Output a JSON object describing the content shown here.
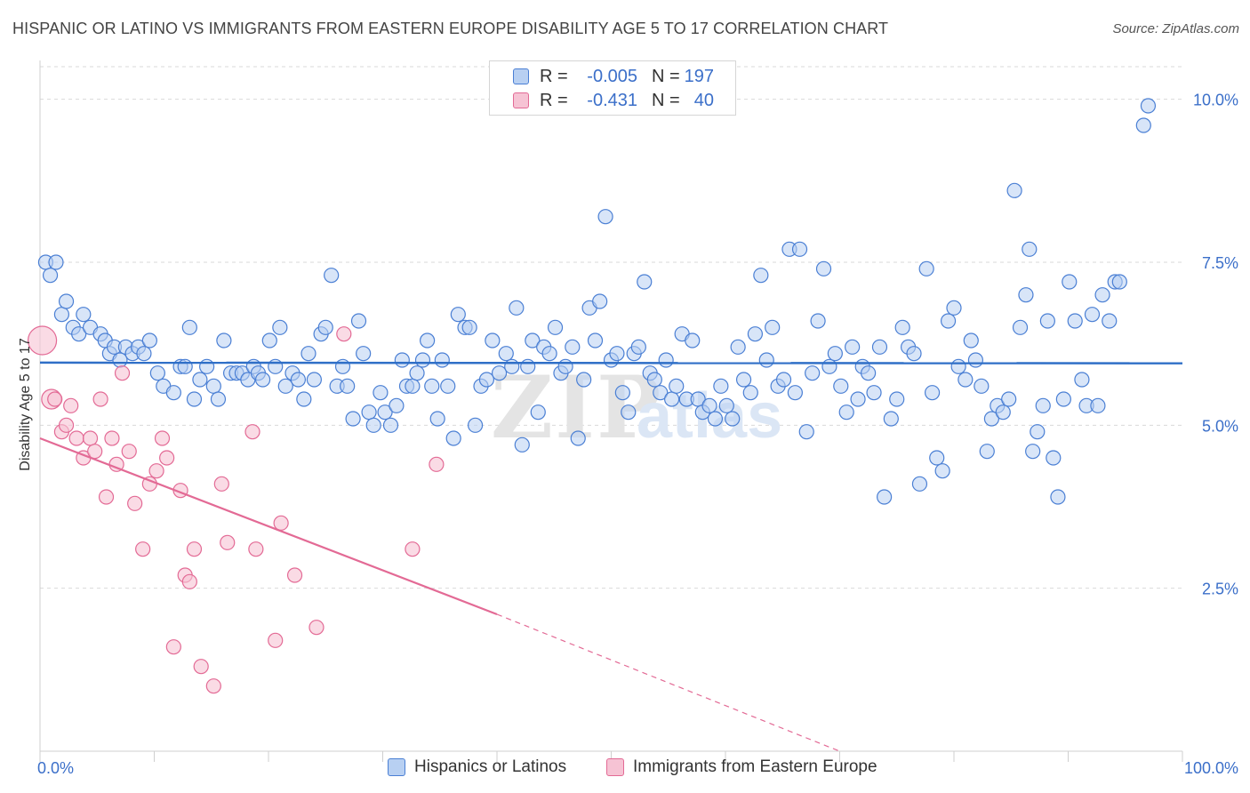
{
  "title": "HISPANIC OR LATINO VS IMMIGRANTS FROM EASTERN EUROPE DISABILITY AGE 5 TO 17 CORRELATION CHART",
  "source": "Source: ZipAtlas.com",
  "watermark": {
    "zip": "ZIP",
    "atlas": "atlas"
  },
  "colors": {
    "blue": "#4a7fd4",
    "blue_fill": "#b8d0f2",
    "pink": "#e36a95",
    "pink_fill": "#f6c3d4",
    "axis_label_blue": "#3b6fc9",
    "grid": "#d9d9d9"
  },
  "stats": {
    "rows": [
      {
        "r_label": "R =",
        "r_value": "-0.005",
        "n_label": "N =",
        "n_value": "197"
      },
      {
        "r_label": "R =",
        "r_value": "-0.431",
        "n_label": "N =",
        "n_value": "40"
      }
    ]
  },
  "legend": {
    "items": [
      "Hispanics or Latinos",
      "Immigrants from Eastern Europe"
    ]
  },
  "chart_data": {
    "type": "scatter",
    "title": "HISPANIC OR LATINO VS IMMIGRANTS FROM EASTERN EUROPE DISABILITY AGE 5 TO 17 CORRELATION CHART",
    "xlabel": "",
    "ylabel": "Disability Age 5 to 17",
    "xlim": [
      0,
      100
    ],
    "ylim": [
      0,
      10.5
    ],
    "x_tick_labels": [
      "0.0%",
      "100.0%"
    ],
    "y_ticks": [
      2.5,
      5.0,
      7.5,
      10.0
    ],
    "y_tick_labels": [
      "2.5%",
      "5.0%",
      "7.5%",
      "10.0%"
    ],
    "grid": true,
    "legend_position": "bottom",
    "series": [
      {
        "name": "Hispanics or Latinos",
        "color": "#4a7fd4",
        "trend": {
          "x": [
            0,
            100
          ],
          "y": [
            5.96,
            5.95
          ]
        },
        "points": [
          [
            0.5,
            7.5
          ],
          [
            0.9,
            7.3
          ],
          [
            1.4,
            7.5
          ],
          [
            1.9,
            6.7
          ],
          [
            2.3,
            6.9
          ],
          [
            2.9,
            6.5
          ],
          [
            3.4,
            6.4
          ],
          [
            3.8,
            6.7
          ],
          [
            4.4,
            6.5
          ],
          [
            5.3,
            6.4
          ],
          [
            5.7,
            6.3
          ],
          [
            6.1,
            6.1
          ],
          [
            6.5,
            6.2
          ],
          [
            7.0,
            6.0
          ],
          [
            7.5,
            6.2
          ],
          [
            8.1,
            6.1
          ],
          [
            8.6,
            6.2
          ],
          [
            9.1,
            6.1
          ],
          [
            9.6,
            6.3
          ],
          [
            10.3,
            5.8
          ],
          [
            10.8,
            5.6
          ],
          [
            11.7,
            5.5
          ],
          [
            12.3,
            5.9
          ],
          [
            12.7,
            5.9
          ],
          [
            13.1,
            6.5
          ],
          [
            13.5,
            5.4
          ],
          [
            14.0,
            5.7
          ],
          [
            14.6,
            5.9
          ],
          [
            15.2,
            5.6
          ],
          [
            15.6,
            5.4
          ],
          [
            16.1,
            6.3
          ],
          [
            16.7,
            5.8
          ],
          [
            17.2,
            5.8
          ],
          [
            17.7,
            5.8
          ],
          [
            18.2,
            5.7
          ],
          [
            18.7,
            5.9
          ],
          [
            19.1,
            5.8
          ],
          [
            19.5,
            5.7
          ],
          [
            20.1,
            6.3
          ],
          [
            20.6,
            5.9
          ],
          [
            21.0,
            6.5
          ],
          [
            21.5,
            5.6
          ],
          [
            22.1,
            5.8
          ],
          [
            22.6,
            5.7
          ],
          [
            23.1,
            5.4
          ],
          [
            23.5,
            6.1
          ],
          [
            24.0,
            5.7
          ],
          [
            24.6,
            6.4
          ],
          [
            25.0,
            6.5
          ],
          [
            25.5,
            7.3
          ],
          [
            26.0,
            5.6
          ],
          [
            26.5,
            5.9
          ],
          [
            26.9,
            5.6
          ],
          [
            27.4,
            5.1
          ],
          [
            27.9,
            6.6
          ],
          [
            28.3,
            6.1
          ],
          [
            28.8,
            5.2
          ],
          [
            29.2,
            5.0
          ],
          [
            29.8,
            5.5
          ],
          [
            30.2,
            5.2
          ],
          [
            30.7,
            5.0
          ],
          [
            31.2,
            5.3
          ],
          [
            31.7,
            6.0
          ],
          [
            32.1,
            5.6
          ],
          [
            32.6,
            5.6
          ],
          [
            33.0,
            5.8
          ],
          [
            33.5,
            6.0
          ],
          [
            33.9,
            6.3
          ],
          [
            34.3,
            5.6
          ],
          [
            34.8,
            5.1
          ],
          [
            35.2,
            6.0
          ],
          [
            35.7,
            5.6
          ],
          [
            36.2,
            4.8
          ],
          [
            36.6,
            6.7
          ],
          [
            37.2,
            6.5
          ],
          [
            37.6,
            6.5
          ],
          [
            38.1,
            5.0
          ],
          [
            38.6,
            5.6
          ],
          [
            39.1,
            5.7
          ],
          [
            39.6,
            6.3
          ],
          [
            40.2,
            5.8
          ],
          [
            40.8,
            6.1
          ],
          [
            41.3,
            5.9
          ],
          [
            41.7,
            6.8
          ],
          [
            42.2,
            4.7
          ],
          [
            42.7,
            5.9
          ],
          [
            43.1,
            6.3
          ],
          [
            43.6,
            5.2
          ],
          [
            44.1,
            6.2
          ],
          [
            44.6,
            6.1
          ],
          [
            45.1,
            6.5
          ],
          [
            45.6,
            5.8
          ],
          [
            46.0,
            5.9
          ],
          [
            46.6,
            6.2
          ],
          [
            47.1,
            4.8
          ],
          [
            47.6,
            5.7
          ],
          [
            48.1,
            6.8
          ],
          [
            48.6,
            6.3
          ],
          [
            49.0,
            6.9
          ],
          [
            49.5,
            8.2
          ],
          [
            50.0,
            6.0
          ],
          [
            50.5,
            6.1
          ],
          [
            51.0,
            5.5
          ],
          [
            51.5,
            5.2
          ],
          [
            52.0,
            6.1
          ],
          [
            52.4,
            6.2
          ],
          [
            52.9,
            7.2
          ],
          [
            53.4,
            5.8
          ],
          [
            53.8,
            5.7
          ],
          [
            54.3,
            5.5
          ],
          [
            54.8,
            6.0
          ],
          [
            55.3,
            5.4
          ],
          [
            55.7,
            5.6
          ],
          [
            56.2,
            6.4
          ],
          [
            56.6,
            5.4
          ],
          [
            57.1,
            6.3
          ],
          [
            57.6,
            5.4
          ],
          [
            58.0,
            5.2
          ],
          [
            58.6,
            5.3
          ],
          [
            59.1,
            5.1
          ],
          [
            59.6,
            5.6
          ],
          [
            60.1,
            5.3
          ],
          [
            60.6,
            5.1
          ],
          [
            61.1,
            6.2
          ],
          [
            61.6,
            5.7
          ],
          [
            62.2,
            5.5
          ],
          [
            62.6,
            6.4
          ],
          [
            63.1,
            7.3
          ],
          [
            63.6,
            6.0
          ],
          [
            64.1,
            6.5
          ],
          [
            64.6,
            5.6
          ],
          [
            65.1,
            5.7
          ],
          [
            65.6,
            7.7
          ],
          [
            66.1,
            5.5
          ],
          [
            66.5,
            7.7
          ],
          [
            67.1,
            4.9
          ],
          [
            67.6,
            5.8
          ],
          [
            68.1,
            6.6
          ],
          [
            68.6,
            7.4
          ],
          [
            69.1,
            5.9
          ],
          [
            69.6,
            6.1
          ],
          [
            70.1,
            5.6
          ],
          [
            70.6,
            5.2
          ],
          [
            71.1,
            6.2
          ],
          [
            71.6,
            5.4
          ],
          [
            72.0,
            5.9
          ],
          [
            72.5,
            5.8
          ],
          [
            73.0,
            5.5
          ],
          [
            73.5,
            6.2
          ],
          [
            73.9,
            3.9
          ],
          [
            74.5,
            5.1
          ],
          [
            75.0,
            5.4
          ],
          [
            75.5,
            6.5
          ],
          [
            76.0,
            6.2
          ],
          [
            76.5,
            6.1
          ],
          [
            77.0,
            4.1
          ],
          [
            77.6,
            7.4
          ],
          [
            78.1,
            5.5
          ],
          [
            78.5,
            4.5
          ],
          [
            79.0,
            4.3
          ],
          [
            79.5,
            6.6
          ],
          [
            80.0,
            6.8
          ],
          [
            80.4,
            5.9
          ],
          [
            81.0,
            5.7
          ],
          [
            81.5,
            6.3
          ],
          [
            81.9,
            6.0
          ],
          [
            82.4,
            5.6
          ],
          [
            82.9,
            4.6
          ],
          [
            83.3,
            5.1
          ],
          [
            83.8,
            5.3
          ],
          [
            84.3,
            5.2
          ],
          [
            84.8,
            5.4
          ],
          [
            85.3,
            8.6
          ],
          [
            85.8,
            6.5
          ],
          [
            86.3,
            7.0
          ],
          [
            86.6,
            7.7
          ],
          [
            86.9,
            4.6
          ],
          [
            87.3,
            4.9
          ],
          [
            87.8,
            5.3
          ],
          [
            88.2,
            6.6
          ],
          [
            88.7,
            4.5
          ],
          [
            89.1,
            3.9
          ],
          [
            89.6,
            5.4
          ],
          [
            90.1,
            7.2
          ],
          [
            90.6,
            6.6
          ],
          [
            91.2,
            5.7
          ],
          [
            91.6,
            5.3
          ],
          [
            92.1,
            6.7
          ],
          [
            92.6,
            5.3
          ],
          [
            93.0,
            7.0
          ],
          [
            93.6,
            6.6
          ],
          [
            94.1,
            7.2
          ],
          [
            94.5,
            7.2
          ],
          [
            96.6,
            9.6
          ],
          [
            97.0,
            9.9
          ]
        ]
      },
      {
        "name": "Immigrants from Eastern Europe",
        "color": "#e36a95",
        "trend": {
          "x": [
            0,
            40
          ],
          "y": [
            4.8,
            2.1
          ],
          "dashed_to": [
            70,
            0
          ]
        },
        "points": [
          [
            0.2,
            6.3
          ],
          [
            1.0,
            5.4
          ],
          [
            1.3,
            5.4
          ],
          [
            1.9,
            4.9
          ],
          [
            2.3,
            5.0
          ],
          [
            2.7,
            5.3
          ],
          [
            3.2,
            4.8
          ],
          [
            3.8,
            4.5
          ],
          [
            4.4,
            4.8
          ],
          [
            4.8,
            4.6
          ],
          [
            5.3,
            5.4
          ],
          [
            5.8,
            3.9
          ],
          [
            6.3,
            4.8
          ],
          [
            6.7,
            4.4
          ],
          [
            7.2,
            5.8
          ],
          [
            7.8,
            4.6
          ],
          [
            8.3,
            3.8
          ],
          [
            9.0,
            3.1
          ],
          [
            9.6,
            4.1
          ],
          [
            10.2,
            4.3
          ],
          [
            10.7,
            4.8
          ],
          [
            11.1,
            4.5
          ],
          [
            11.7,
            1.6
          ],
          [
            12.3,
            4.0
          ],
          [
            12.7,
            2.7
          ],
          [
            13.1,
            2.6
          ],
          [
            13.5,
            3.1
          ],
          [
            14.1,
            1.3
          ],
          [
            15.2,
            1.0
          ],
          [
            15.9,
            4.1
          ],
          [
            16.4,
            3.2
          ],
          [
            18.6,
            4.9
          ],
          [
            18.9,
            3.1
          ],
          [
            20.6,
            1.7
          ],
          [
            21.1,
            3.5
          ],
          [
            22.3,
            2.7
          ],
          [
            24.2,
            1.9
          ],
          [
            26.6,
            6.4
          ],
          [
            32.6,
            3.1
          ],
          [
            34.7,
            4.4
          ]
        ]
      }
    ]
  }
}
